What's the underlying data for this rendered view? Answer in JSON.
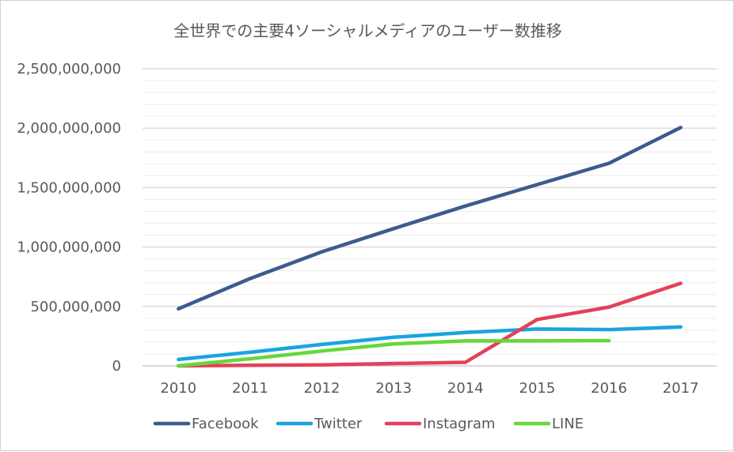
{
  "chart_data": {
    "type": "line",
    "title": "全世界での主要4ソーシャルメディアのユーザー数推移",
    "x": [
      "2010",
      "2011",
      "2012",
      "2013",
      "2014",
      "2015",
      "2016",
      "2017"
    ],
    "ylim": [
      0,
      2500000000
    ],
    "y_ticks": [
      0,
      500000000,
      1000000000,
      1500000000,
      2000000000,
      2500000000
    ],
    "y_tick_labels": [
      "0",
      "500,000,000",
      "1,000,000,000",
      "1,500,000,000",
      "2,000,000,000",
      "2,500,000,000"
    ],
    "grid": true,
    "minor_grid": true,
    "legend_position": "bottom",
    "series": [
      {
        "name": "Facebook",
        "color": "#3e5a8f",
        "values": [
          480000000,
          735000000,
          960000000,
          1155000000,
          1345000000,
          1525000000,
          1705000000,
          2005000000
        ]
      },
      {
        "name": "Twitter",
        "color": "#1aa4df",
        "values": [
          54000000,
          115000000,
          180000000,
          241000000,
          281000000,
          310000000,
          305000000,
          328000000
        ]
      },
      {
        "name": "Instagram",
        "color": "#e4405a",
        "values": [
          0,
          5000000,
          8000000,
          20000000,
          30000000,
          390000000,
          495000000,
          695000000
        ]
      },
      {
        "name": "LINE",
        "color": "#65d83a",
        "values": [
          0,
          60000000,
          125000000,
          185000000,
          210000000,
          210000000,
          212000000,
          null
        ]
      }
    ]
  }
}
